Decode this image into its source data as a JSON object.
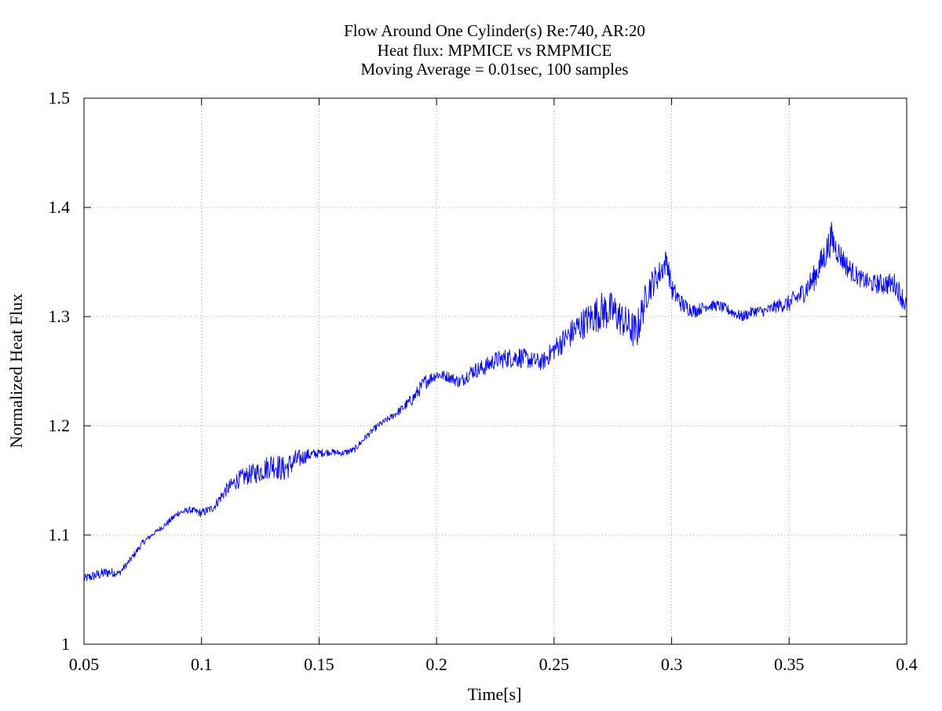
{
  "chart_data": {
    "type": "line",
    "title": [
      "Flow Around One Cylinder(s) Re:740, AR:20",
      "Heat flux: MPMICE vs RMPMICE",
      "Moving Average = 0.01sec, 100 samples"
    ],
    "xlabel": "Time[s]",
    "ylabel": "Normalized Heat Flux",
    "xlim": [
      0.05,
      0.4
    ],
    "ylim": [
      1.0,
      1.5
    ],
    "xticks": [
      "0.05",
      "0.1",
      "0.15",
      "0.2",
      "0.25",
      "0.3",
      "0.35",
      "0.4"
    ],
    "yticks": [
      "1",
      "1.1",
      "1.2",
      "1.3",
      "1.4",
      "1.5"
    ],
    "grid": true,
    "series": [
      {
        "color": "#0000ff",
        "x": [
          0.05,
          0.055,
          0.06,
          0.065,
          0.07,
          0.075,
          0.08,
          0.085,
          0.09,
          0.095,
          0.1,
          0.105,
          0.11,
          0.115,
          0.12,
          0.125,
          0.13,
          0.135,
          0.14,
          0.145,
          0.15,
          0.155,
          0.16,
          0.165,
          0.17,
          0.175,
          0.18,
          0.185,
          0.19,
          0.195,
          0.2,
          0.205,
          0.21,
          0.215,
          0.22,
          0.225,
          0.23,
          0.235,
          0.24,
          0.245,
          0.25,
          0.255,
          0.26,
          0.265,
          0.27,
          0.275,
          0.28,
          0.285,
          0.29,
          0.295,
          0.298,
          0.3,
          0.305,
          0.31,
          0.315,
          0.32,
          0.325,
          0.33,
          0.335,
          0.34,
          0.345,
          0.35,
          0.355,
          0.36,
          0.365,
          0.368,
          0.37,
          0.375,
          0.38,
          0.385,
          0.39,
          0.395,
          0.4
        ],
        "y": [
          1.06,
          1.063,
          1.066,
          1.065,
          1.078,
          1.093,
          1.102,
          1.11,
          1.12,
          1.123,
          1.12,
          1.125,
          1.14,
          1.15,
          1.155,
          1.158,
          1.165,
          1.16,
          1.168,
          1.173,
          1.175,
          1.176,
          1.175,
          1.178,
          1.19,
          1.2,
          1.207,
          1.215,
          1.225,
          1.24,
          1.247,
          1.245,
          1.24,
          1.25,
          1.253,
          1.26,
          1.262,
          1.263,
          1.26,
          1.258,
          1.27,
          1.28,
          1.29,
          1.298,
          1.305,
          1.305,
          1.295,
          1.285,
          1.325,
          1.34,
          1.352,
          1.325,
          1.31,
          1.305,
          1.31,
          1.31,
          1.305,
          1.3,
          1.305,
          1.305,
          1.31,
          1.312,
          1.32,
          1.333,
          1.355,
          1.372,
          1.362,
          1.345,
          1.335,
          1.33,
          1.33,
          1.33,
          1.31
        ],
        "noise": [
          0.004,
          0.005,
          0.005,
          0.003,
          0.003,
          0.003,
          0.002,
          0.003,
          0.003,
          0.003,
          0.004,
          0.004,
          0.006,
          0.008,
          0.009,
          0.01,
          0.012,
          0.012,
          0.01,
          0.006,
          0.004,
          0.003,
          0.003,
          0.003,
          0.003,
          0.003,
          0.003,
          0.004,
          0.006,
          0.007,
          0.005,
          0.005,
          0.006,
          0.007,
          0.008,
          0.008,
          0.009,
          0.01,
          0.008,
          0.008,
          0.01,
          0.012,
          0.014,
          0.015,
          0.018,
          0.018,
          0.016,
          0.018,
          0.014,
          0.012,
          0.012,
          0.01,
          0.008,
          0.006,
          0.005,
          0.005,
          0.005,
          0.005,
          0.005,
          0.005,
          0.006,
          0.008,
          0.01,
          0.012,
          0.014,
          0.015,
          0.012,
          0.01,
          0.008,
          0.008,
          0.01,
          0.01,
          0.01
        ]
      }
    ]
  }
}
